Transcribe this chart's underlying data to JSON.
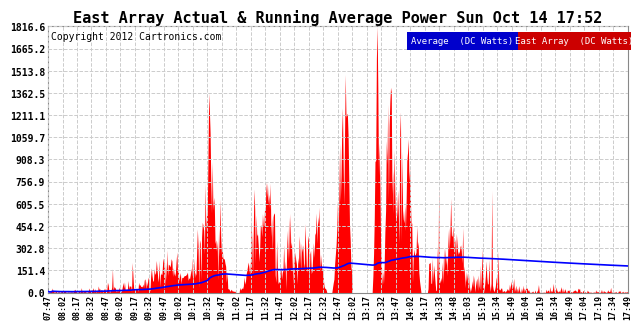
{
  "title": "East Array Actual & Running Average Power Sun Oct 14 17:52",
  "copyright": "Copyright 2012 Cartronics.com",
  "legend_labels": [
    "Average  (DC Watts)",
    "East Array  (DC Watts)"
  ],
  "legend_colors": [
    "#0000ff",
    "#ff0000"
  ],
  "ytick_labels": [
    "0.0",
    "151.4",
    "302.8",
    "454.2",
    "605.5",
    "756.9",
    "908.3",
    "1059.7",
    "1211.1",
    "1362.5",
    "1513.8",
    "1665.2",
    "1816.6"
  ],
  "ytick_values": [
    0.0,
    151.4,
    302.8,
    454.2,
    605.5,
    756.9,
    908.3,
    1059.7,
    1211.1,
    1362.5,
    1513.8,
    1665.2,
    1816.6
  ],
  "xtick_labels": [
    "07:47",
    "08:02",
    "08:17",
    "08:32",
    "08:47",
    "09:02",
    "09:17",
    "09:32",
    "09:47",
    "10:02",
    "10:17",
    "10:32",
    "10:47",
    "11:02",
    "11:17",
    "11:32",
    "11:47",
    "12:02",
    "12:17",
    "12:32",
    "12:47",
    "13:02",
    "13:17",
    "13:32",
    "13:47",
    "14:02",
    "14:17",
    "14:33",
    "14:48",
    "15:03",
    "15:19",
    "15:34",
    "15:49",
    "16:04",
    "16:19",
    "16:34",
    "16:49",
    "17:04",
    "17:19",
    "17:34",
    "17:49"
  ],
  "ymax": 1816.6,
  "ymin": 0.0,
  "bg_color": "#ffffff",
  "plot_bg_color": "#ffffff",
  "grid_color": "#cccccc",
  "line_color": "#0000ff",
  "fill_color": "#ff0000",
  "title_fontsize": 11,
  "copyright_fontsize": 7
}
